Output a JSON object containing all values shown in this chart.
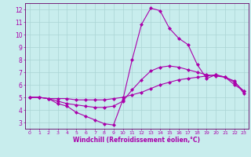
{
  "title": "",
  "xlabel": "Windchill (Refroidissement éolien,°C)",
  "ylabel": "",
  "background_color": "#c8eded",
  "grid_color": "#aad4d4",
  "line_color": "#aa00aa",
  "xlim": [
    -0.5,
    23.5
  ],
  "ylim": [
    2.5,
    12.5
  ],
  "yticks": [
    3,
    4,
    5,
    6,
    7,
    8,
    9,
    10,
    11,
    12
  ],
  "xticks": [
    0,
    1,
    2,
    3,
    4,
    5,
    6,
    7,
    8,
    9,
    10,
    11,
    12,
    13,
    14,
    15,
    16,
    17,
    18,
    19,
    20,
    21,
    22,
    23
  ],
  "series": [
    {
      "x": [
        0,
        1,
        2,
        3,
        4,
        5,
        6,
        7,
        8,
        9,
        10,
        11,
        12,
        13,
        14,
        15,
        16,
        17,
        18,
        19,
        20,
        21,
        22,
        23
      ],
      "y": [
        5.0,
        5.0,
        4.9,
        4.5,
        4.3,
        3.8,
        3.5,
        3.2,
        2.9,
        2.8,
        4.8,
        8.0,
        10.8,
        12.1,
        11.9,
        10.5,
        9.7,
        9.2,
        7.6,
        6.5,
        6.8,
        6.6,
        6.3,
        5.3
      ],
      "color": "#aa00aa",
      "marker": "D",
      "markersize": 2.0,
      "linewidth": 0.8
    },
    {
      "x": [
        0,
        1,
        2,
        3,
        4,
        5,
        6,
        7,
        8,
        9,
        10,
        11,
        12,
        13,
        14,
        15,
        16,
        17,
        18,
        19,
        20,
        21,
        22,
        23
      ],
      "y": [
        5.0,
        5.0,
        4.9,
        4.9,
        4.9,
        4.8,
        4.8,
        4.8,
        4.8,
        4.9,
        5.0,
        5.2,
        5.4,
        5.7,
        6.0,
        6.2,
        6.4,
        6.5,
        6.6,
        6.7,
        6.8,
        6.6,
        6.0,
        5.5
      ],
      "color": "#aa00aa",
      "marker": "D",
      "markersize": 2.0,
      "linewidth": 0.8
    },
    {
      "x": [
        0,
        1,
        2,
        3,
        4,
        5,
        6,
        7,
        8,
        9,
        10,
        11,
        12,
        13,
        14,
        15,
        16,
        17,
        18,
        19,
        20,
        21,
        22,
        23
      ],
      "y": [
        5.0,
        5.0,
        4.9,
        4.7,
        4.5,
        4.4,
        4.3,
        4.2,
        4.2,
        4.3,
        4.7,
        5.6,
        6.4,
        7.1,
        7.4,
        7.5,
        7.4,
        7.2,
        7.0,
        6.8,
        6.7,
        6.6,
        6.2,
        5.5
      ],
      "color": "#aa00aa",
      "marker": "D",
      "markersize": 2.0,
      "linewidth": 0.8
    }
  ],
  "tick_fontsize": 5.0,
  "xlabel_fontsize": 5.5,
  "tick_color": "#aa00aa",
  "axis_color": "#660066"
}
